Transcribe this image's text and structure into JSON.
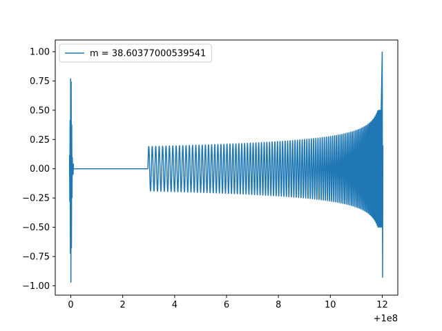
{
  "chart_data": {
    "type": "line",
    "title": "",
    "xlabel": "",
    "ylabel": "",
    "x_offset_label": "+1e8",
    "xlim": [
      -0.6,
      12.6
    ],
    "ylim": [
      -1.08,
      1.1
    ],
    "x_ticks": [
      0,
      2,
      4,
      6,
      8,
      10,
      12
    ],
    "x_tick_labels": [
      "0",
      "2",
      "4",
      "6",
      "8",
      "10",
      "12"
    ],
    "y_ticks": [
      1.0,
      0.75,
      0.5,
      0.25,
      0.0,
      -0.25,
      -0.5,
      -0.75,
      -1.0
    ],
    "y_tick_labels": [
      "1.00",
      "0.75",
      "0.50",
      "0.25",
      "0.00",
      "−0.25",
      "−0.50",
      "−0.75",
      "−1.00"
    ],
    "legend": {
      "placement": "upper-left",
      "entries": [
        "m = 38.60377000539541"
      ]
    },
    "grid": false,
    "series": [
      {
        "name": "m = 38.60377000539541",
        "color": "#1f77b4",
        "segments": [
          {
            "kind": "burst",
            "x_start": -0.05,
            "x_end": 0.1,
            "y_max": 0.82,
            "y_min": -0.97
          },
          {
            "kind": "flat",
            "x_start": 0.1,
            "x_end": 2.97,
            "y": 0.0
          },
          {
            "kind": "chirp",
            "x_start": 2.97,
            "x_end": 12.0,
            "amp_start": 0.19,
            "amp_end": 0.5,
            "peak_end": 1.0,
            "trough_end": -0.93
          }
        ]
      }
    ]
  }
}
